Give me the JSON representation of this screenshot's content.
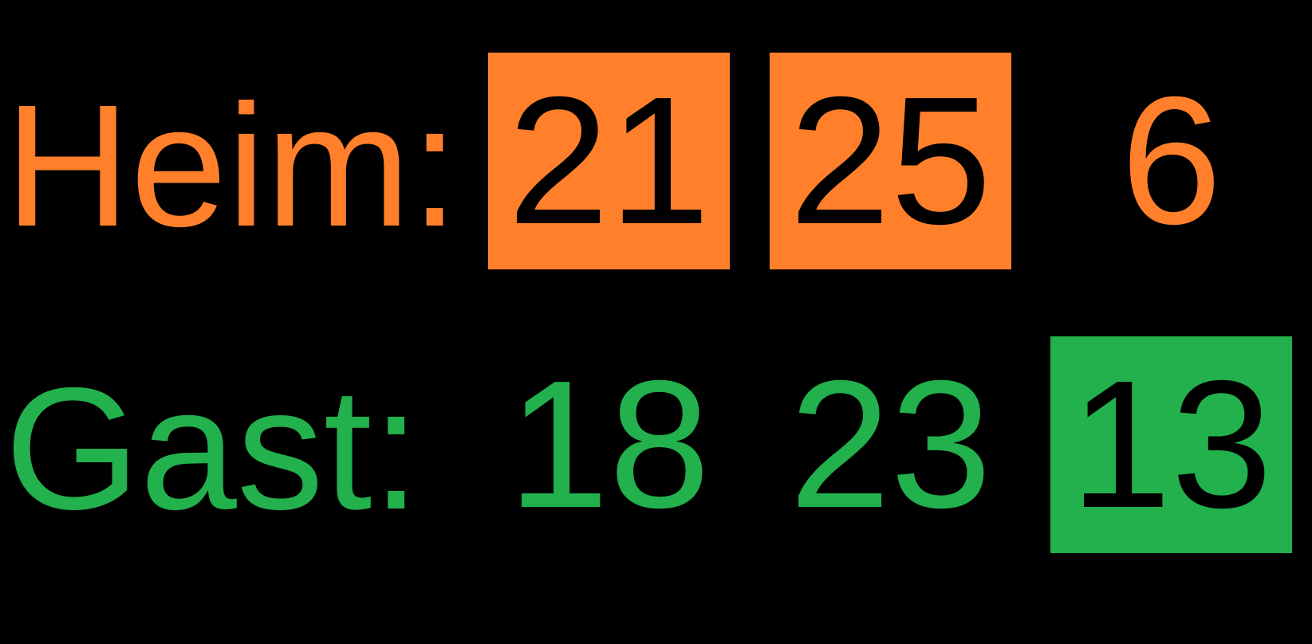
{
  "colors": {
    "background": "#000000",
    "home": "#ff7f2a",
    "away": "#22b14c",
    "highlight_text": "#000000"
  },
  "home": {
    "label": "Heim:",
    "sets": [
      {
        "score": "21",
        "won": true
      },
      {
        "score": "25",
        "won": true
      },
      {
        "score": "6",
        "won": false
      }
    ]
  },
  "away": {
    "label": "Gast:",
    "sets": [
      {
        "score": "18",
        "won": false
      },
      {
        "score": "23",
        "won": false
      },
      {
        "score": "13",
        "won": true
      }
    ]
  }
}
